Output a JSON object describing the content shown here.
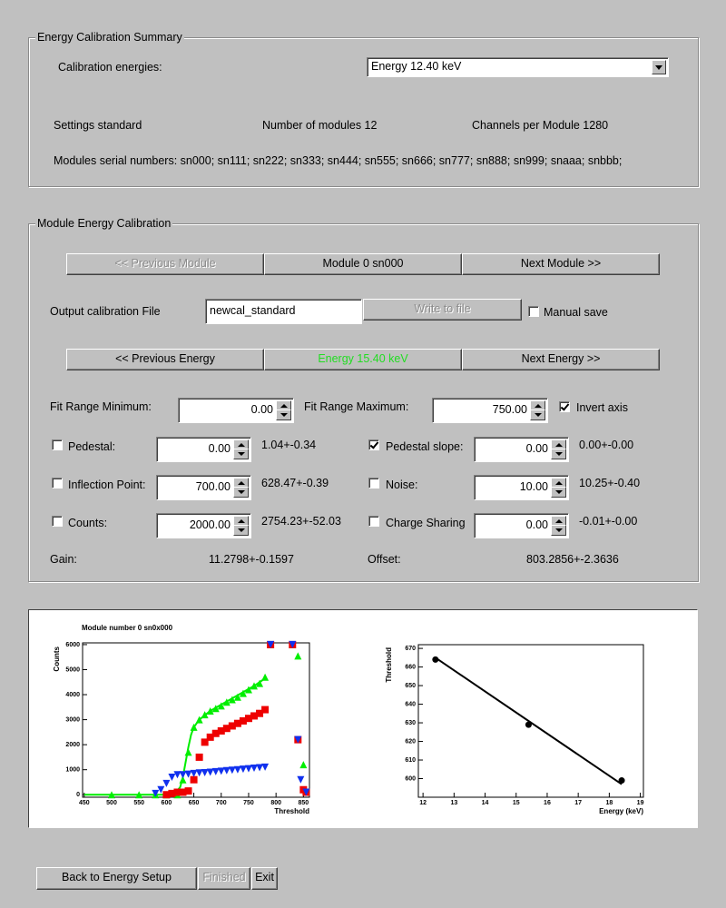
{
  "summary": {
    "title": "Energy Calibration Summary",
    "calibration_energies_label": "Calibration energies:",
    "calibration_energy": "Energy 12.40 keV",
    "settings": "Settings standard",
    "modules": "Number of modules 12",
    "channels": "Channels per Module 1280",
    "serial_numbers": "Modules serial numbers: sn000; sn111; sn222; sn333; sn444; sn555; sn666; sn777; sn888; sn999; snaaa; snbbb;"
  },
  "module_calibration": {
    "title": "Module Energy Calibration",
    "previous_module": {
      "label": "<< Previous Module",
      "enabled": false
    },
    "module": "Module 0 sn000",
    "next_module": {
      "label": "Next Module >>",
      "enabled": true
    },
    "output_file_label": "Output calibration File",
    "output_file": "newcal_standard",
    "write_to_file": {
      "label": "Write to file",
      "enabled": false
    },
    "manual_save": {
      "label": "Manual save",
      "checked": false
    },
    "previous_energy": {
      "label": "<< Previous Energy",
      "enabled": true
    },
    "energy": {
      "label": "Energy 15.40 keV",
      "color": "#22dd22"
    },
    "next_energy": {
      "label": "Next Energy >>",
      "enabled": true
    },
    "fit_min": {
      "label": "Fit Range Minimum:",
      "value": "0.00"
    },
    "fit_max": {
      "label": "Fit Range Maximum:",
      "value": "750.00"
    },
    "invert_axis": {
      "label": "Invert axis",
      "checked": true
    },
    "parameters": [
      {
        "label": "Pedestal:",
        "checked": false,
        "value": "0.00",
        "result": "1.04+-0.34"
      },
      {
        "label": "Pedestal slope:",
        "checked": true,
        "value": "0.00",
        "result": "0.00+-0.00"
      },
      {
        "label": "Inflection Point:",
        "checked": false,
        "value": "700.00",
        "result": "628.47+-0.39"
      },
      {
        "label": "Noise:",
        "checked": false,
        "value": "10.00",
        "result": "10.25+-0.40"
      },
      {
        "label": "Counts:",
        "checked": false,
        "value": "2000.00",
        "result": "2754.23+-52.03"
      },
      {
        "label": "Charge Sharing",
        "checked": false,
        "value": "0.00",
        "result": "-0.01+-0.00"
      }
    ],
    "gain": {
      "label": "Gain:",
      "value": "11.2798+-0.1597"
    },
    "offset": {
      "label": "Offset:",
      "value": "803.2856+-2.3636"
    }
  },
  "chart_data": [
    {
      "type": "scatter",
      "title": "Module number 0 sn0x000",
      "x_label": "Threshold",
      "y_label": "Counts",
      "xlim": [
        447,
        861
      ],
      "ylim": [
        -100,
        6070
      ],
      "xticks": [
        450,
        500,
        550,
        600,
        650,
        700,
        750,
        800,
        850
      ],
      "yticks": [
        0,
        1000,
        2000,
        3000,
        4000,
        5000,
        6000
      ],
      "series": [
        {
          "color": "#00ee00",
          "line": true,
          "x": [
            450,
            600,
            615,
            625,
            630,
            635,
            640,
            645,
            650,
            660,
            680,
            700,
            720,
            740,
            760,
            780
          ],
          "values": [
            0,
            0,
            50,
            300,
            700,
            1300,
            1900,
            2400,
            2700,
            3000,
            3350,
            3600,
            3850,
            4100,
            4350,
            4650
          ]
        },
        {
          "color": "#00ee00",
          "marker": "triangle-up",
          "x": [
            500,
            550,
            580,
            600,
            620,
            630,
            640,
            650,
            660,
            670,
            680,
            690,
            700,
            710,
            720,
            730,
            740,
            750,
            760,
            770,
            780,
            790,
            830,
            840,
            850
          ],
          "values": [
            0,
            0,
            0,
            0,
            0,
            600,
            1700,
            2700,
            3000,
            3200,
            3350,
            3450,
            3550,
            3700,
            3800,
            3900,
            4050,
            4200,
            4350,
            4450,
            4700,
            6000,
            6000,
            5550,
            1200
          ]
        },
        {
          "color": "#ee0000",
          "marker": "square",
          "x": [
            600,
            610,
            620,
            630,
            640,
            650,
            660,
            670,
            680,
            690,
            700,
            710,
            720,
            730,
            740,
            750,
            760,
            770,
            780,
            790,
            830,
            840,
            850,
            855
          ],
          "values": [
            0,
            50,
            100,
            100,
            150,
            600,
            1500,
            2100,
            2300,
            2450,
            2550,
            2650,
            2750,
            2850,
            2950,
            3050,
            3150,
            3250,
            3400,
            6000,
            6000,
            2200,
            200,
            100
          ]
        },
        {
          "color": "#1030ee",
          "marker": "triangle-down",
          "x": [
            580,
            590,
            600,
            610,
            620,
            630,
            640,
            650,
            660,
            670,
            680,
            690,
            700,
            710,
            720,
            730,
            740,
            750,
            760,
            770,
            780,
            790,
            830,
            840,
            845,
            855
          ],
          "values": [
            50,
            200,
            450,
            700,
            800,
            800,
            820,
            850,
            870,
            880,
            900,
            920,
            940,
            960,
            980,
            1000,
            1020,
            1040,
            1060,
            1080,
            1100,
            6000,
            6000,
            2200,
            600,
            100
          ]
        }
      ]
    },
    {
      "type": "scatter",
      "x_label": "Energy (keV)",
      "y_label": "Threshold",
      "xlim": [
        11.85,
        19.1
      ],
      "ylim": [
        590,
        672
      ],
      "xticks": [
        12,
        13,
        14,
        15,
        16,
        17,
        18,
        19
      ],
      "yticks": [
        600,
        610,
        620,
        630,
        640,
        650,
        660,
        670
      ],
      "series": [
        {
          "color": "#000000",
          "line": true,
          "x": [
            12.4,
            18.4
          ],
          "values": [
            665,
            597
          ]
        },
        {
          "color": "#000000",
          "marker": "circle",
          "x": [
            12.4,
            15.4,
            18.4
          ],
          "values": [
            664,
            629,
            599
          ]
        }
      ]
    }
  ],
  "footer": {
    "back": {
      "label": "Back to Energy Setup",
      "enabled": true
    },
    "finished": {
      "label": "Finished",
      "enabled": false
    },
    "exit": {
      "label": "Exit",
      "enabled": true
    }
  }
}
